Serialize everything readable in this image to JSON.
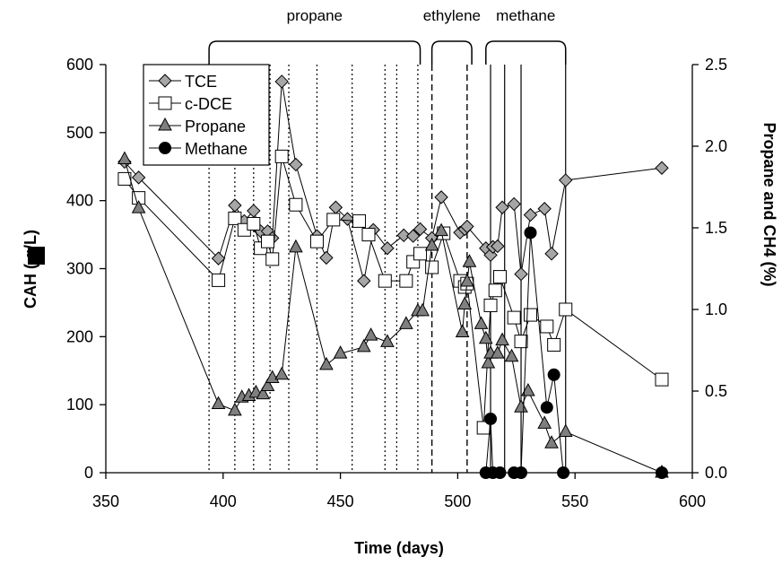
{
  "chart_data": {
    "type": "line",
    "xlabel": "Time (days)",
    "ylabel": "CAH (  g/L)",
    "y2label": "Propane and CH4 (%)",
    "xlim": [
      350,
      600
    ],
    "ylim": [
      0,
      600
    ],
    "y2lim": [
      0,
      2.5
    ],
    "x_ticks": [
      "350",
      "400",
      "450",
      "500",
      "550",
      "600"
    ],
    "y_ticks": [
      "0",
      "100",
      "200",
      "300",
      "400",
      "500",
      "600"
    ],
    "y2_ticks": [
      "0.0",
      "0.5",
      "1.0",
      "1.5",
      "2.0",
      "2.5"
    ],
    "grid": false,
    "legend_position": "top-left",
    "phases": [
      {
        "label": "propane",
        "start": 394,
        "end": 484
      },
      {
        "label": "ethylene",
        "start": 489,
        "end": 506
      },
      {
        "label": "methane",
        "start": 512,
        "end": 546
      }
    ],
    "vlines": {
      "dotted": [
        394,
        405,
        413,
        420,
        428,
        440,
        455,
        469,
        474,
        483
      ],
      "dashed": [
        489,
        504
      ],
      "solid": [
        514,
        520,
        527,
        546
      ]
    },
    "series": [
      {
        "name": "TCE",
        "axis": "left",
        "marker": "diamond",
        "color": "#a6a6a6",
        "points": [
          [
            358,
            457
          ],
          [
            364,
            434
          ],
          [
            398,
            315
          ],
          [
            405,
            393
          ],
          [
            409,
            370
          ],
          [
            413,
            385
          ],
          [
            416,
            355
          ],
          [
            419,
            355
          ],
          [
            421,
            345
          ],
          [
            425,
            575
          ],
          [
            431,
            453
          ],
          [
            440,
            348
          ],
          [
            444,
            316
          ],
          [
            448,
            390
          ],
          [
            453,
            373
          ],
          [
            460,
            282
          ],
          [
            464,
            357
          ],
          [
            470,
            330
          ],
          [
            477,
            349
          ],
          [
            481,
            348
          ],
          [
            484,
            358
          ],
          [
            489,
            345
          ],
          [
            493,
            405
          ],
          [
            501,
            353
          ],
          [
            503,
            358
          ],
          [
            504,
            362
          ],
          [
            512,
            330
          ],
          [
            514,
            320
          ],
          [
            515,
            332
          ],
          [
            517,
            333
          ],
          [
            519,
            390
          ],
          [
            524,
            395
          ],
          [
            527,
            292
          ],
          [
            531,
            379
          ],
          [
            537,
            388
          ],
          [
            540,
            322
          ],
          [
            546,
            430
          ],
          [
            587,
            448
          ]
        ]
      },
      {
        "name": "c-DCE",
        "axis": "left",
        "marker": "square",
        "color": "#ffffff",
        "points": [
          [
            358,
            432
          ],
          [
            364,
            404
          ],
          [
            398,
            283
          ],
          [
            405,
            374
          ],
          [
            409,
            357
          ],
          [
            413,
            366
          ],
          [
            416,
            330
          ],
          [
            419,
            340
          ],
          [
            421,
            314
          ],
          [
            425,
            465
          ],
          [
            431,
            394
          ],
          [
            440,
            340
          ],
          [
            447,
            372
          ],
          [
            458,
            370
          ],
          [
            462,
            350
          ],
          [
            469,
            282
          ],
          [
            478,
            282
          ],
          [
            481,
            310
          ],
          [
            484,
            322
          ],
          [
            489,
            302
          ],
          [
            494,
            352
          ],
          [
            501,
            282
          ],
          [
            503,
            273
          ],
          [
            504,
            278
          ],
          [
            511,
            66
          ],
          [
            514,
            246
          ],
          [
            516,
            268
          ],
          [
            518,
            288
          ],
          [
            524,
            228
          ],
          [
            527,
            193
          ],
          [
            531,
            232
          ],
          [
            538,
            215
          ],
          [
            541,
            188
          ],
          [
            546,
            240
          ],
          [
            587,
            137
          ]
        ]
      },
      {
        "name": "Propane",
        "axis": "right",
        "marker": "triangle",
        "color": "#7f7f7f",
        "points": [
          [
            358,
            1.92
          ],
          [
            364,
            1.62
          ],
          [
            398,
            0.42
          ],
          [
            405,
            0.38
          ],
          [
            408,
            0.46
          ],
          [
            411,
            0.47
          ],
          [
            414,
            0.49
          ],
          [
            417,
            0.48
          ],
          [
            419,
            0.53
          ],
          [
            421,
            0.58
          ],
          [
            425,
            0.6
          ],
          [
            431,
            1.38
          ],
          [
            444,
            0.66
          ],
          [
            450,
            0.73
          ],
          [
            460,
            0.77
          ],
          [
            463,
            0.84
          ],
          [
            470,
            0.8
          ],
          [
            478,
            0.91
          ],
          [
            483,
            0.99
          ],
          [
            485,
            0.99
          ],
          [
            489,
            1.39
          ],
          [
            493,
            1.48
          ],
          [
            502,
            0.86
          ],
          [
            503,
            1.03
          ],
          [
            504,
            1.17
          ],
          [
            505,
            1.29
          ],
          [
            510,
            0.91
          ],
          [
            512,
            0.82
          ],
          [
            513,
            0.67
          ],
          [
            514,
            0.73
          ],
          [
            517,
            0.73
          ],
          [
            519,
            0.81
          ],
          [
            523,
            0.71
          ],
          [
            527,
            0.4
          ],
          [
            530,
            0.5
          ],
          [
            537,
            0.3
          ],
          [
            540,
            0.18
          ],
          [
            546,
            0.25
          ],
          [
            587,
            0.0
          ]
        ]
      },
      {
        "name": "Methane",
        "axis": "right",
        "marker": "circle",
        "color": "#000000",
        "points": [
          [
            512,
            0.0
          ],
          [
            514,
            0.33
          ],
          [
            515,
            0.0
          ],
          [
            518,
            0.0
          ],
          [
            524,
            0.0
          ],
          [
            527,
            0.0
          ],
          [
            531,
            1.47
          ],
          [
            538,
            0.4
          ],
          [
            541,
            0.6
          ],
          [
            545,
            0.0
          ],
          [
            587,
            0.0
          ]
        ]
      }
    ]
  }
}
